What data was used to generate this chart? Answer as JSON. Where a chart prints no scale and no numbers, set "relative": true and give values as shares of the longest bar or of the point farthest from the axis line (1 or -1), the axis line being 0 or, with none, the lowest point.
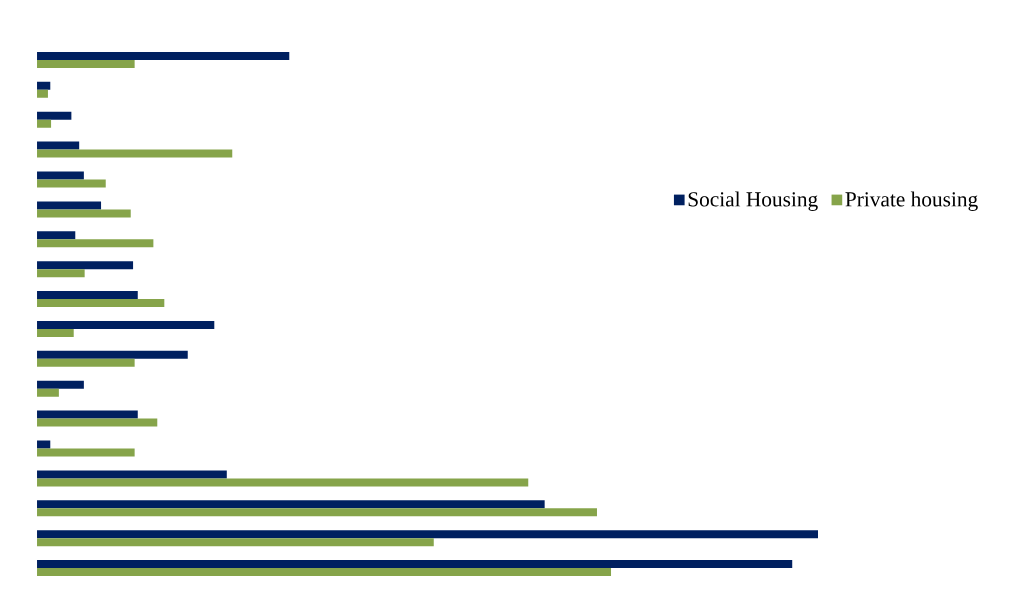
{
  "chart_data": {
    "type": "bar",
    "orientation": "horizontal",
    "relative": true,
    "legend": "right",
    "categories": [
      null,
      null,
      null,
      null,
      null,
      null,
      null,
      null,
      null,
      null,
      null,
      null,
      null,
      null,
      null,
      null,
      null,
      null
    ],
    "series": [
      {
        "name": "Social Housing",
        "color": "#002060",
        "values": [
          0.323,
          0.017,
          0.044,
          0.054,
          0.06,
          0.082,
          0.049,
          0.123,
          0.129,
          0.227,
          0.193,
          0.06,
          0.129,
          0.017,
          0.243,
          0.65,
          1,
          0.967
        ]
      },
      {
        "name": "Private housing",
        "color": "#86a44a",
        "values": [
          0.125,
          0.014,
          0.018,
          0.25,
          0.088,
          0.12,
          0.149,
          0.061,
          0.163,
          0.047,
          0.125,
          0.028,
          0.154,
          0.125,
          0.629,
          0.717,
          0.508,
          0.735
        ]
      }
    ]
  }
}
